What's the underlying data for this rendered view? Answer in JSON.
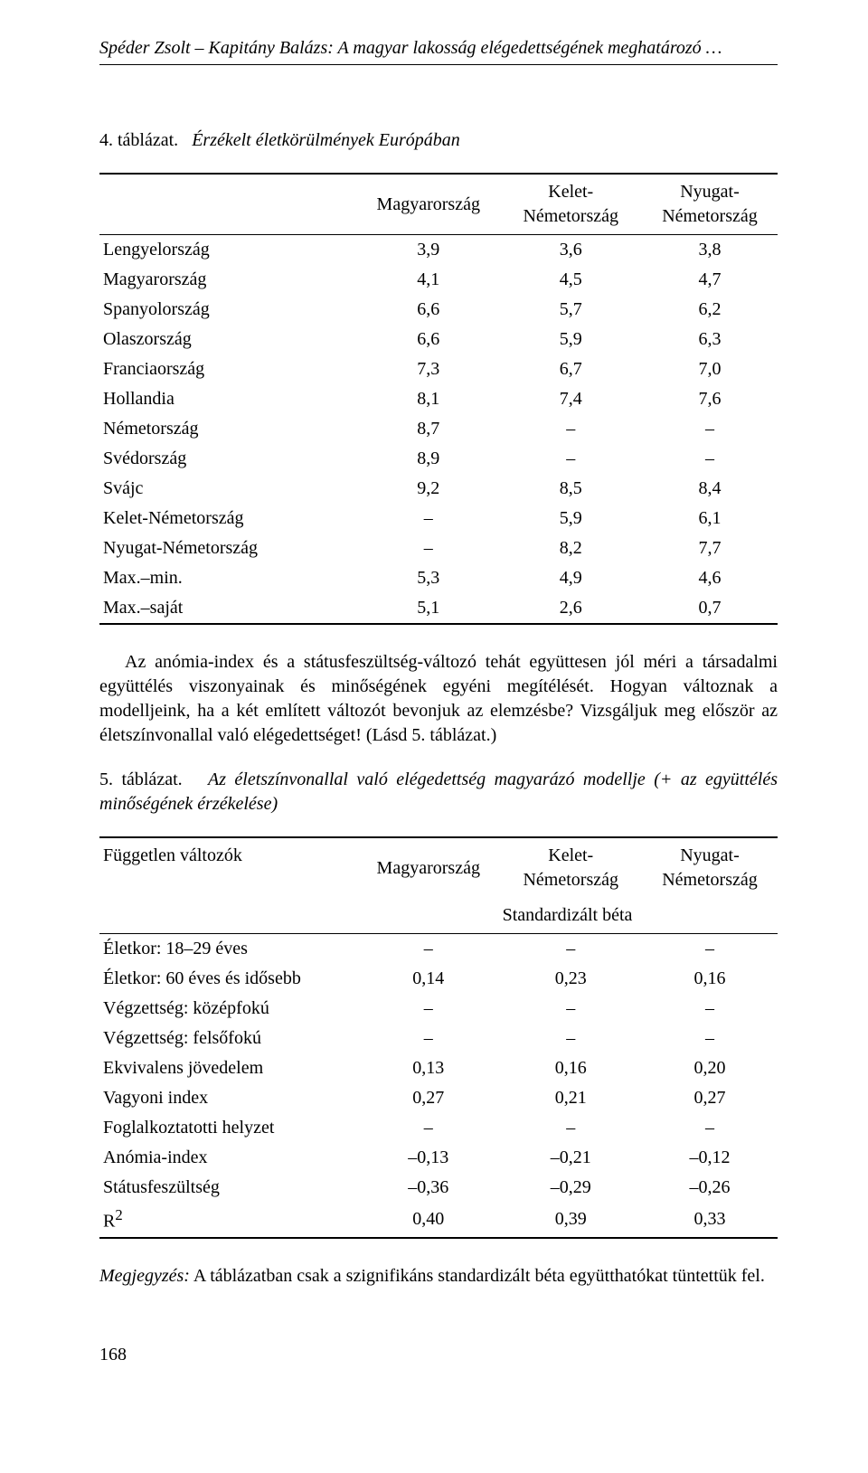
{
  "running_head": "Spéder Zsolt – Kapitány Balázs: A magyar lakosság elégedettségének meghatározó …",
  "table4": {
    "caption_no": "4. táblázat.",
    "caption_title": "Érzékelt életkörülmények Európában",
    "head_col1": "",
    "head_col2": "Magyarország",
    "head_col3": "Kelet-\nNémetország",
    "head_col4": "Nyugat-\nNémetország",
    "rows": [
      {
        "label": "Lengyelország",
        "c1": "3,9",
        "c2": "3,6",
        "c3": "3,8"
      },
      {
        "label": "Magyarország",
        "c1": "4,1",
        "c2": "4,5",
        "c3": "4,7"
      },
      {
        "label": "Spanyolország",
        "c1": "6,6",
        "c2": "5,7",
        "c3": "6,2"
      },
      {
        "label": "Olaszország",
        "c1": "6,6",
        "c2": "5,9",
        "c3": "6,3"
      },
      {
        "label": "Franciaország",
        "c1": "7,3",
        "c2": "6,7",
        "c3": "7,0"
      },
      {
        "label": "Hollandia",
        "c1": "8,1",
        "c2": "7,4",
        "c3": "7,6"
      },
      {
        "label": "Németország",
        "c1": "8,7",
        "c2": "–",
        "c3": "–"
      },
      {
        "label": "Svédország",
        "c1": "8,9",
        "c2": "–",
        "c3": "–"
      },
      {
        "label": "Svájc",
        "c1": "9,2",
        "c2": "8,5",
        "c3": "8,4"
      },
      {
        "label": "Kelet-Németország",
        "c1": "–",
        "c2": "5,9",
        "c3": "6,1"
      },
      {
        "label": "Nyugat-Németország",
        "c1": "–",
        "c2": "8,2",
        "c3": "7,7"
      },
      {
        "label": "Max.–min.",
        "c1": "5,3",
        "c2": "4,9",
        "c3": "4,6"
      },
      {
        "label": "Max.–saját",
        "c1": "5,1",
        "c2": "2,6",
        "c3": "0,7"
      }
    ]
  },
  "body_para": "Az anómia-index és a státusfeszültség-változó tehát együttesen jól méri a társadalmi együttélés viszonyainak és minőségének egyéni megítélését. Hogyan változnak a modelljeink, ha a két említett változót bevonjuk az elemzésbe? Vizsgáljuk meg először az életszínvonallal való elégedettséget! (Lásd 5. táblázat.)",
  "table5": {
    "caption_no": "5. táblázat.",
    "caption_title": "Az életszínvonallal való elégedettség magyarázó modellje (+ az együttélés minőségének érzékelése)",
    "head_col1": "Független változók",
    "head_col2": "Magyarország",
    "head_col3": "Kelet-\nNémetország",
    "head_col4": "Nyugat-\nNémetország",
    "subhead": "Standardizált béta",
    "rows": [
      {
        "label": "Életkor: 18–29 éves",
        "c1": "–",
        "c2": "–",
        "c3": "–"
      },
      {
        "label": "Életkor: 60 éves és idősebb",
        "c1": "0,14",
        "c2": "0,23",
        "c3": "0,16"
      },
      {
        "label": "Végzettség: középfokú",
        "c1": "–",
        "c2": "–",
        "c3": "–"
      },
      {
        "label": "Végzettség: felsőfokú",
        "c1": "–",
        "c2": "–",
        "c3": "–"
      },
      {
        "label": "Ekvivalens jövedelem",
        "c1": "0,13",
        "c2": "0,16",
        "c3": "0,20"
      },
      {
        "label": "Vagyoni index",
        "c1": "0,27",
        "c2": "0,21",
        "c3": "0,27"
      },
      {
        "label": "Foglalkoztatotti helyzet",
        "c1": "–",
        "c2": "–",
        "c3": "–"
      },
      {
        "label": "Anómia-index",
        "c1": "–0,13",
        "c2": "–0,21",
        "c3": "–0,12"
      },
      {
        "label": "Státusfeszültség",
        "c1": "–0,36",
        "c2": "–0,29",
        "c3": "–0,26"
      },
      {
        "label": "R²",
        "c1": "0,40",
        "c2": "0,39",
        "c3": "0,33"
      }
    ]
  },
  "note_label": "Megjegyzés:",
  "note_text": " A táblázatban csak a szignifikáns standardizált béta együtthatókat tüntettük fel.",
  "page_number": "168"
}
